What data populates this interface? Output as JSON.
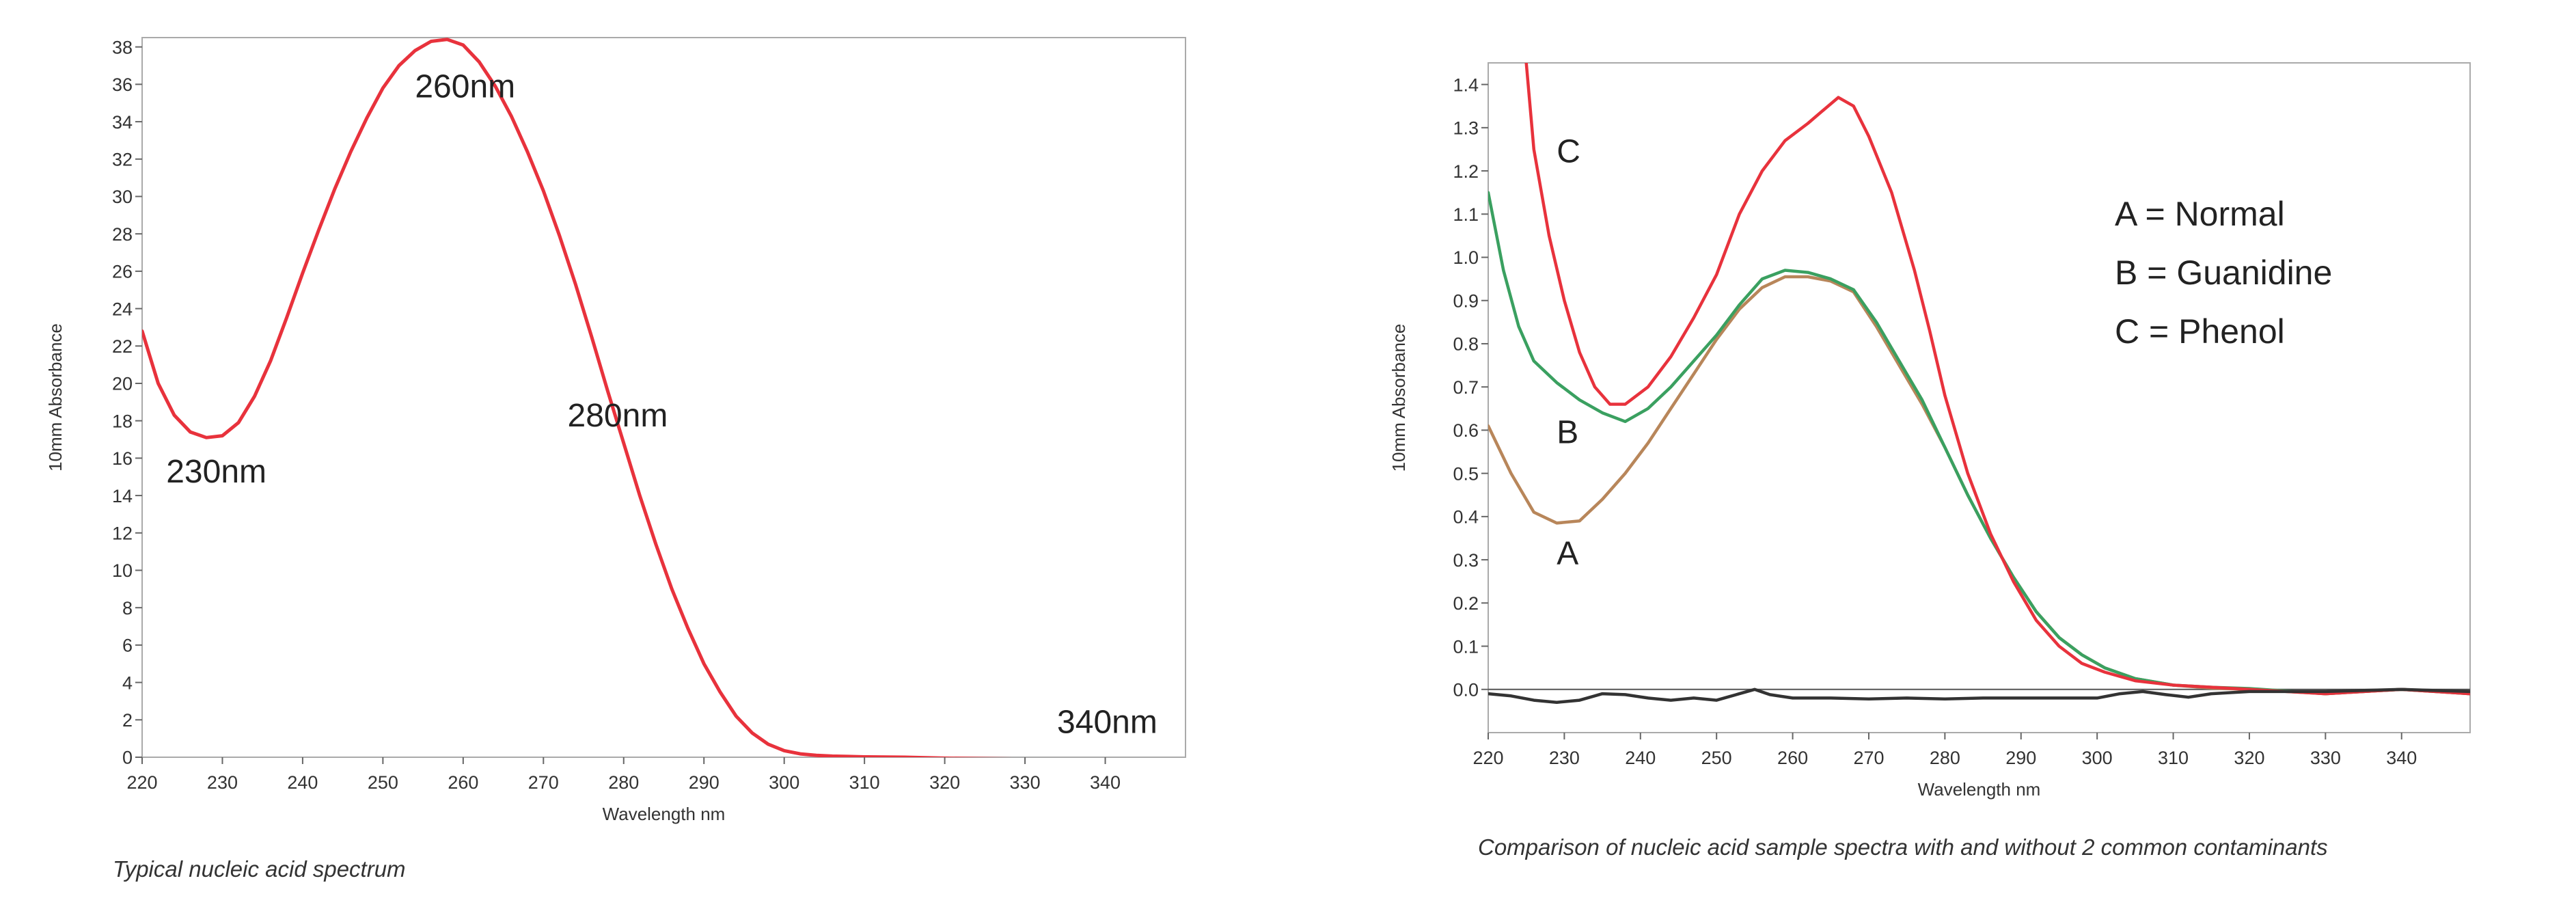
{
  "chart_data": [
    {
      "type": "line",
      "caption": "Typical nucleic acid spectrum",
      "xlabel": "Wavelength nm",
      "ylabel": "10mm Absorbance",
      "xlim": [
        220,
        350
      ],
      "ylim": [
        0,
        38.5
      ],
      "xticks": [
        220,
        230,
        240,
        250,
        260,
        270,
        280,
        290,
        300,
        310,
        320,
        330,
        340
      ],
      "yticks": [
        0,
        2,
        4,
        6,
        8,
        10,
        12,
        14,
        16,
        18,
        20,
        22,
        24,
        26,
        28,
        30,
        32,
        34,
        36,
        38
      ],
      "grid": false,
      "line_color": "#e8323c",
      "series": [
        {
          "x": [
            220,
            222,
            224,
            226,
            228,
            230,
            232,
            234,
            236,
            238,
            240,
            242,
            244,
            246,
            248,
            250,
            252,
            254,
            256,
            258,
            260,
            262,
            264,
            266,
            268,
            270,
            272,
            274,
            276,
            278,
            280,
            282,
            284,
            286,
            288,
            290,
            292,
            294,
            296,
            298,
            300,
            302,
            304,
            306,
            308,
            310,
            315,
            320,
            330,
            340,
            350
          ],
          "values": [
            22.8,
            20.0,
            18.3,
            17.4,
            17.1,
            17.2,
            17.9,
            19.3,
            21.2,
            23.5,
            25.9,
            28.2,
            30.4,
            32.4,
            34.2,
            35.8,
            37.0,
            37.8,
            38.3,
            38.4,
            38.1,
            37.2,
            35.9,
            34.3,
            32.4,
            30.3,
            27.9,
            25.3,
            22.5,
            19.6,
            16.8,
            14.0,
            11.4,
            9.0,
            6.9,
            5.0,
            3.5,
            2.2,
            1.3,
            0.7,
            0.35,
            0.18,
            0.1,
            0.06,
            0.04,
            0.02,
            0.0,
            -0.05,
            -0.1,
            -0.12,
            -0.12
          ]
        }
      ],
      "annotations": [
        {
          "text": "230nm",
          "x": 223,
          "y": 14.7
        },
        {
          "text": "260nm",
          "x": 254,
          "y": 35.3
        },
        {
          "text": "280nm",
          "x": 273,
          "y": 17.7
        },
        {
          "text": "340nm",
          "x": 334,
          "y": 1.3
        }
      ]
    },
    {
      "type": "line",
      "caption": "Comparison of nucleic acid sample spectra with and without 2 common contaminants",
      "xlabel": "Wavelength nm",
      "ylabel": "10mm Absorbance",
      "xlim": [
        220,
        349
      ],
      "ylim": [
        -0.1,
        1.45
      ],
      "xticks": [
        220,
        230,
        240,
        250,
        260,
        270,
        280,
        290,
        300,
        310,
        320,
        330,
        340
      ],
      "yticks": [
        "0.0",
        "0.1",
        "0.2",
        "0.3",
        "0.4",
        "0.5",
        "0.6",
        "0.7",
        "0.8",
        "0.9",
        "1.0",
        "1.1",
        "1.2",
        "1.3",
        "1.4"
      ],
      "grid": false,
      "zero_line": true,
      "legend": [
        "A = Normal",
        "B = Guanidine",
        "C = Phenol"
      ],
      "legend_position": "top-right",
      "series": [
        {
          "label": "A",
          "color": "#b8865a",
          "x": [
            220,
            223,
            226,
            229,
            232,
            235,
            238,
            241,
            244,
            247,
            250,
            253,
            256,
            259,
            262,
            265,
            268,
            271,
            274,
            277,
            280,
            283,
            286,
            289,
            292,
            295,
            298,
            301,
            305,
            310,
            315,
            320,
            330,
            340,
            349
          ],
          "values": [
            0.61,
            0.5,
            0.41,
            0.385,
            0.39,
            0.44,
            0.5,
            0.57,
            0.65,
            0.73,
            0.81,
            0.88,
            0.93,
            0.955,
            0.955,
            0.945,
            0.92,
            0.84,
            0.75,
            0.66,
            0.56,
            0.45,
            0.35,
            0.26,
            0.18,
            0.12,
            0.08,
            0.05,
            0.025,
            0.01,
            0.003,
            0.0,
            -0.01,
            0.0,
            -0.01
          ]
        },
        {
          "label": "B",
          "color": "#3aa060",
          "x": [
            220,
            222,
            224,
            226,
            229,
            232,
            235,
            238,
            241,
            244,
            247,
            250,
            253,
            256,
            259,
            262,
            265,
            268,
            271,
            274,
            277,
            280,
            283,
            286,
            289,
            292,
            295,
            298,
            301,
            305,
            310,
            315,
            320,
            330,
            340,
            349
          ],
          "values": [
            1.15,
            0.97,
            0.84,
            0.76,
            0.71,
            0.67,
            0.64,
            0.62,
            0.65,
            0.7,
            0.76,
            0.82,
            0.89,
            0.95,
            0.97,
            0.965,
            0.95,
            0.925,
            0.85,
            0.76,
            0.67,
            0.56,
            0.45,
            0.35,
            0.26,
            0.18,
            0.12,
            0.08,
            0.05,
            0.025,
            0.01,
            0.005,
            0.002,
            -0.01,
            0.0,
            -0.01
          ]
        },
        {
          "label": "C",
          "color": "#e8323c",
          "x": [
            225,
            226,
            228,
            230,
            232,
            234,
            236,
            238,
            241,
            244,
            247,
            250,
            253,
            256,
            259,
            262,
            264,
            266,
            268,
            270,
            273,
            276,
            278,
            280,
            283,
            286,
            289,
            292,
            295,
            298,
            301,
            305,
            310,
            315,
            320,
            330,
            340,
            349
          ],
          "values": [
            1.45,
            1.25,
            1.05,
            0.9,
            0.78,
            0.7,
            0.66,
            0.66,
            0.7,
            0.77,
            0.86,
            0.96,
            1.1,
            1.2,
            1.27,
            1.31,
            1.34,
            1.37,
            1.35,
            1.28,
            1.15,
            0.97,
            0.83,
            0.68,
            0.5,
            0.36,
            0.25,
            0.16,
            0.1,
            0.06,
            0.04,
            0.02,
            0.01,
            0.005,
            0.0,
            -0.01,
            0.0,
            -0.01
          ]
        },
        {
          "label": "",
          "color": "#333333",
          "x": [
            220,
            223,
            226,
            229,
            232,
            235,
            238,
            241,
            244,
            247,
            250,
            253,
            255,
            257,
            260,
            265,
            270,
            275,
            280,
            285,
            290,
            295,
            300,
            303,
            306,
            309,
            312,
            315,
            320,
            330,
            340,
            349
          ],
          "values": [
            -0.01,
            -0.015,
            -0.025,
            -0.03,
            -0.025,
            -0.01,
            -0.012,
            -0.02,
            -0.025,
            -0.02,
            -0.025,
            -0.01,
            0.0,
            -0.012,
            -0.02,
            -0.02,
            -0.022,
            -0.02,
            -0.022,
            -0.02,
            -0.02,
            -0.02,
            -0.02,
            -0.01,
            -0.005,
            -0.012,
            -0.018,
            -0.01,
            -0.005,
            -0.005,
            0.0,
            -0.005
          ]
        }
      ],
      "annotations": [
        {
          "text": "C",
          "x": 229,
          "y": 1.22
        },
        {
          "text": "B",
          "x": 229,
          "y": 0.57
        },
        {
          "text": "A",
          "x": 229,
          "y": 0.29
        }
      ]
    }
  ]
}
